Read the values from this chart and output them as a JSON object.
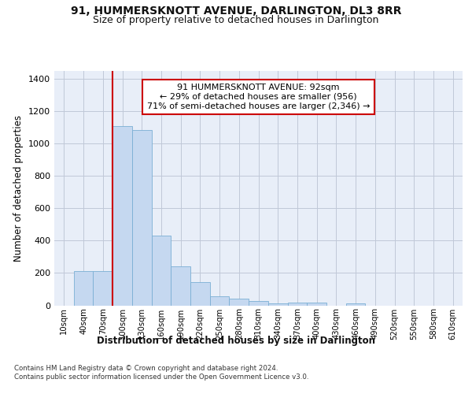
{
  "title_line1": "91, HUMMERSKNOTT AVENUE, DARLINGTON, DL3 8RR",
  "title_line2": "Size of property relative to detached houses in Darlington",
  "xlabel": "Distribution of detached houses by size in Darlington",
  "ylabel": "Number of detached properties",
  "bar_categories": [
    "10sqm",
    "40sqm",
    "70sqm",
    "100sqm",
    "130sqm",
    "160sqm",
    "190sqm",
    "220sqm",
    "250sqm",
    "280sqm",
    "310sqm",
    "340sqm",
    "370sqm",
    "400sqm",
    "430sqm",
    "460sqm",
    "490sqm",
    "520sqm",
    "550sqm",
    "580sqm",
    "610sqm"
  ],
  "bar_values": [
    0,
    210,
    210,
    1110,
    1085,
    430,
    240,
    145,
    58,
    40,
    25,
    10,
    15,
    15,
    0,
    10,
    0,
    0,
    0,
    0,
    0
  ],
  "bar_color": "#c5d8f0",
  "bar_edge_color": "#7aafd4",
  "background_color": "#e8eef8",
  "property_label": "91 HUMMERSKNOTT AVENUE: 92sqm",
  "annotation_line1": "← 29% of detached houses are smaller (956)",
  "annotation_line2": "71% of semi-detached houses are larger (2,346) →",
  "vline_color": "#cc0000",
  "annotation_box_color": "#ffffff",
  "annotation_box_edge": "#cc0000",
  "ylim": [
    0,
    1450
  ],
  "yticks": [
    0,
    200,
    400,
    600,
    800,
    1000,
    1200,
    1400
  ],
  "footnote1": "Contains HM Land Registry data © Crown copyright and database right 2024.",
  "footnote2": "Contains public sector information licensed under the Open Government Licence v3.0."
}
